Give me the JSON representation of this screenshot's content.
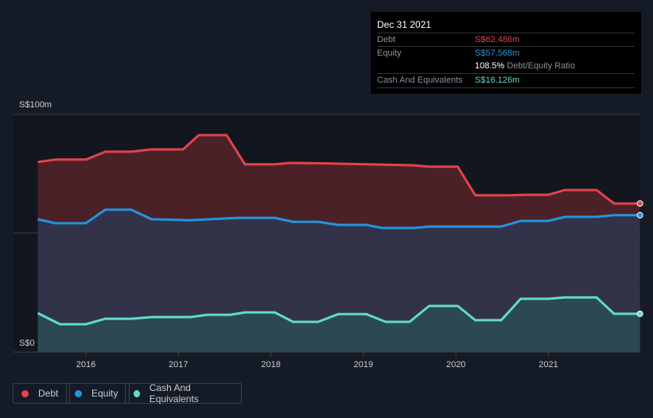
{
  "tooltip": {
    "date": "Dec 31 2021",
    "debt_label": "Debt",
    "debt_value": "S$62.486m",
    "equity_label": "Equity",
    "equity_value": "S$57.568m",
    "ratio_value": "108.5%",
    "ratio_label": "Debt/Equity Ratio",
    "cash_label": "Cash And Equivalents",
    "cash_value": "S$16.126m"
  },
  "legend": [
    {
      "label": "Debt",
      "color": "#e5424a"
    },
    {
      "label": "Equity",
      "color": "#2394e0"
    },
    {
      "label": "Cash And Equivalents",
      "color": "#5fdccb"
    }
  ],
  "chart_data": {
    "type": "area",
    "ylabel_top": "S$100m",
    "ylabel_bottom": "S$0",
    "ylim": [
      0,
      100
    ],
    "xlim": [
      2015.25,
      2022.0
    ],
    "xticks": [
      "2016",
      "2017",
      "2018",
      "2019",
      "2020",
      "2021"
    ],
    "series": [
      {
        "name": "Debt",
        "color": "#e5424a",
        "x": [
          2015.48,
          2015.67,
          2016.0,
          2016.21,
          2016.49,
          2016.71,
          2017.05,
          2017.22,
          2017.52,
          2017.72,
          2018.04,
          2018.21,
          2018.6,
          2019.03,
          2019.54,
          2019.71,
          2020.02,
          2020.21,
          2020.57,
          2020.75,
          2021.0,
          2021.18,
          2021.52,
          2021.71,
          2021.99
        ],
        "y": [
          80,
          81,
          81,
          84.3,
          84.3,
          85.3,
          85.3,
          91.3,
          91.3,
          79,
          79,
          79.6,
          79.4,
          79,
          78.6,
          78,
          78,
          66,
          66,
          66.2,
          66.2,
          68.2,
          68.2,
          62.5,
          62.5
        ]
      },
      {
        "name": "Equity",
        "color": "#2394e0",
        "x": [
          2015.48,
          2015.67,
          2016.0,
          2016.21,
          2016.49,
          2016.71,
          2017.13,
          2017.65,
          2018.04,
          2018.24,
          2018.51,
          2018.73,
          2019.03,
          2019.2,
          2019.54,
          2019.71,
          2020.49,
          2020.7,
          2021.0,
          2021.18,
          2021.52,
          2021.71,
          2021.99
        ],
        "y": [
          55.9,
          54.2,
          54.2,
          59.9,
          59.9,
          55.9,
          55.5,
          56.5,
          56.5,
          54.8,
          54.8,
          53.5,
          53.5,
          52.2,
          52.2,
          52.8,
          52.8,
          55.2,
          55.2,
          56.9,
          56.9,
          57.6,
          57.6
        ]
      },
      {
        "name": "Cash And Equivalents",
        "color": "#5fdccb",
        "x": [
          2015.48,
          2015.72,
          2016.0,
          2016.21,
          2016.49,
          2016.71,
          2017.13,
          2017.31,
          2017.56,
          2017.72,
          2018.04,
          2018.24,
          2018.51,
          2018.73,
          2019.03,
          2019.24,
          2019.5,
          2019.71,
          2020.02,
          2020.21,
          2020.49,
          2020.7,
          2021.0,
          2021.18,
          2021.52,
          2021.71,
          2021.99
        ],
        "y": [
          16.4,
          11.7,
          11.7,
          14,
          14,
          14.7,
          14.7,
          15.7,
          15.7,
          16.7,
          16.7,
          12.7,
          12.7,
          16,
          16,
          12.7,
          12.7,
          19.4,
          19.4,
          13.4,
          13.4,
          22.4,
          22.4,
          23,
          23,
          16.1,
          16.1
        ]
      }
    ]
  }
}
